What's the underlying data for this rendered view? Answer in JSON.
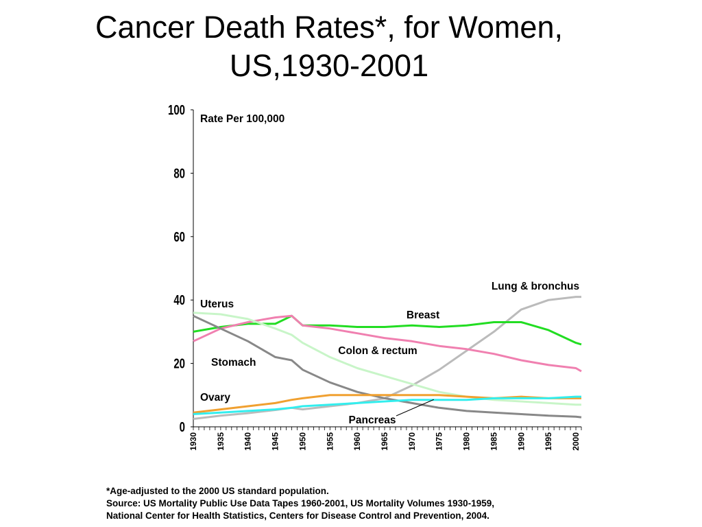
{
  "title": {
    "line1": "Cancer Death Rates*, for Women,",
    "line2": "US,1930-2001"
  },
  "footnote": {
    "line1": "*Age-adjusted to the 2000 US standard population.",
    "line2": "Source:  US Mortality Public Use Data Tapes 1960-2001, US Mortality Volumes 1930-1959,",
    "line3": "National Center for Health Statistics, Centers for Disease Control and Prevention, 2004."
  },
  "chart_data": {
    "type": "line",
    "ylabel": "Rate Per 100,000",
    "xlabel": "",
    "xlim": [
      1930,
      2001
    ],
    "ylim": [
      0,
      100
    ],
    "yticks": [
      0,
      20,
      40,
      60,
      80,
      100
    ],
    "xticks": [
      1930,
      1935,
      1940,
      1945,
      1950,
      1955,
      1960,
      1965,
      1970,
      1975,
      1980,
      1985,
      1990,
      1995,
      2000
    ],
    "grid": false,
    "x": [
      1930,
      1935,
      1940,
      1945,
      1948,
      1950,
      1955,
      1960,
      1965,
      1970,
      1975,
      1980,
      1985,
      1990,
      1995,
      2000,
      2001
    ],
    "series": [
      {
        "name": "Lung & bronchus",
        "color": "#bbbbbb",
        "values": [
          2.5,
          3.5,
          4.3,
          5.3,
          6.0,
          5.5,
          6.5,
          7.5,
          9.0,
          13.0,
          18.0,
          24.0,
          30.0,
          37.0,
          40.0,
          41.0,
          41.0
        ]
      },
      {
        "name": "Breast",
        "color": "#22dd22",
        "values": [
          30.0,
          31.5,
          32.5,
          32.5,
          35.0,
          32.0,
          32.0,
          31.5,
          31.5,
          32.0,
          31.5,
          32.0,
          33.0,
          33.0,
          30.5,
          26.5,
          26.0
        ]
      },
      {
        "name": "Colon & rectum",
        "color": "#f080b0",
        "values": [
          27.0,
          31.0,
          33.0,
          34.5,
          35.0,
          32.0,
          31.0,
          29.5,
          28.0,
          27.0,
          25.5,
          24.5,
          23.0,
          21.0,
          19.5,
          18.5,
          17.5
        ]
      },
      {
        "name": "Uterus",
        "color": "#c8f5c8",
        "values": [
          36.0,
          35.5,
          34.0,
          31.0,
          29.0,
          26.5,
          22.0,
          18.5,
          16.0,
          13.5,
          11.0,
          9.5,
          8.5,
          8.0,
          7.5,
          7.0,
          7.0
        ]
      },
      {
        "name": "Stomach",
        "color": "#888888",
        "values": [
          35.0,
          31.0,
          27.0,
          22.0,
          21.0,
          18.0,
          14.0,
          11.0,
          9.0,
          7.5,
          6.0,
          5.0,
          4.5,
          4.0,
          3.5,
          3.2,
          3.0
        ]
      },
      {
        "name": "Ovary",
        "color": "#f0a030",
        "values": [
          4.5,
          5.5,
          6.5,
          7.5,
          8.5,
          9.0,
          10.0,
          10.0,
          10.0,
          10.0,
          10.0,
          9.5,
          9.0,
          9.5,
          9.0,
          9.0,
          9.0
        ]
      },
      {
        "name": "Pancreas",
        "color": "#33eeee",
        "values": [
          4.0,
          4.5,
          5.0,
          5.5,
          6.0,
          6.5,
          7.0,
          7.5,
          8.0,
          8.5,
          8.5,
          8.5,
          9.0,
          9.0,
          9.0,
          9.5,
          9.5
        ]
      }
    ],
    "labels": [
      {
        "text": "Lung & bronchus",
        "series": "Lung & bronchus"
      },
      {
        "text": "Breast",
        "series": "Breast"
      },
      {
        "text": "Colon & rectum",
        "series": "Colon & rectum"
      },
      {
        "text": "Uterus",
        "series": "Uterus"
      },
      {
        "text": "Stomach",
        "series": "Stomach"
      },
      {
        "text": "Ovary",
        "series": "Ovary"
      },
      {
        "text": "Pancreas",
        "series": "Pancreas"
      }
    ]
  }
}
